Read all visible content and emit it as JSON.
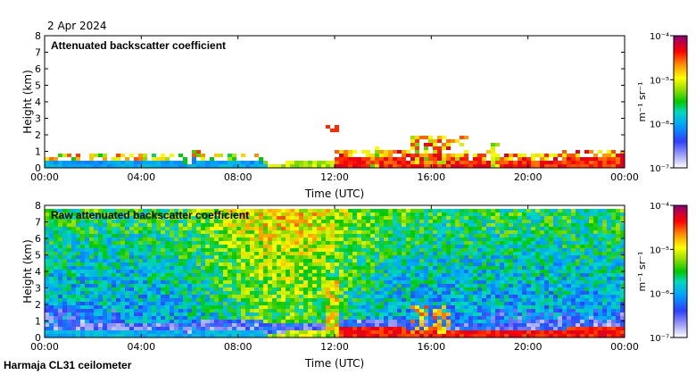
{
  "date_label": "2 Apr 2024",
  "footer": "Harmaja CL31 ceilometer",
  "colorbar_unit": "m⁻¹ sr⁻¹",
  "chart_data": [
    {
      "type": "heatmap",
      "title": "Attenuated backscatter coefficient",
      "xlabel": "Time (UTC)",
      "ylabel": "Height (km)",
      "x_ticks": [
        "00:00",
        "04:00",
        "08:00",
        "12:00",
        "16:00",
        "20:00",
        "00:00"
      ],
      "y_ticks": [
        "0",
        "1",
        "2",
        "3",
        "4",
        "5",
        "6",
        "7",
        "8"
      ],
      "xlim_hours": [
        0,
        24
      ],
      "ylim_km": [
        0,
        8
      ],
      "color_scale": "log",
      "color_range": [
        1e-07,
        0.0001
      ],
      "colorbar_ticks": [
        "10⁻⁷",
        "10⁻⁶",
        "10⁻⁵",
        "10⁻⁴"
      ]
    },
    {
      "type": "heatmap",
      "title": "Raw attenuated backscatter coefficient",
      "xlabel": "Time (UTC)",
      "ylabel": "Height (km)",
      "x_ticks": [
        "00:00",
        "04:00",
        "08:00",
        "12:00",
        "16:00",
        "20:00",
        "00:00"
      ],
      "y_ticks": [
        "0",
        "1",
        "2",
        "3",
        "4",
        "5",
        "6",
        "7",
        "8"
      ],
      "xlim_hours": [
        0,
        24
      ],
      "ylim_km": [
        0,
        8
      ],
      "color_scale": "log",
      "color_range": [
        1e-07,
        0.0001
      ],
      "colorbar_ticks": [
        "10⁻⁷",
        "10⁻⁶",
        "10⁻⁵",
        "10⁻⁴"
      ]
    }
  ]
}
